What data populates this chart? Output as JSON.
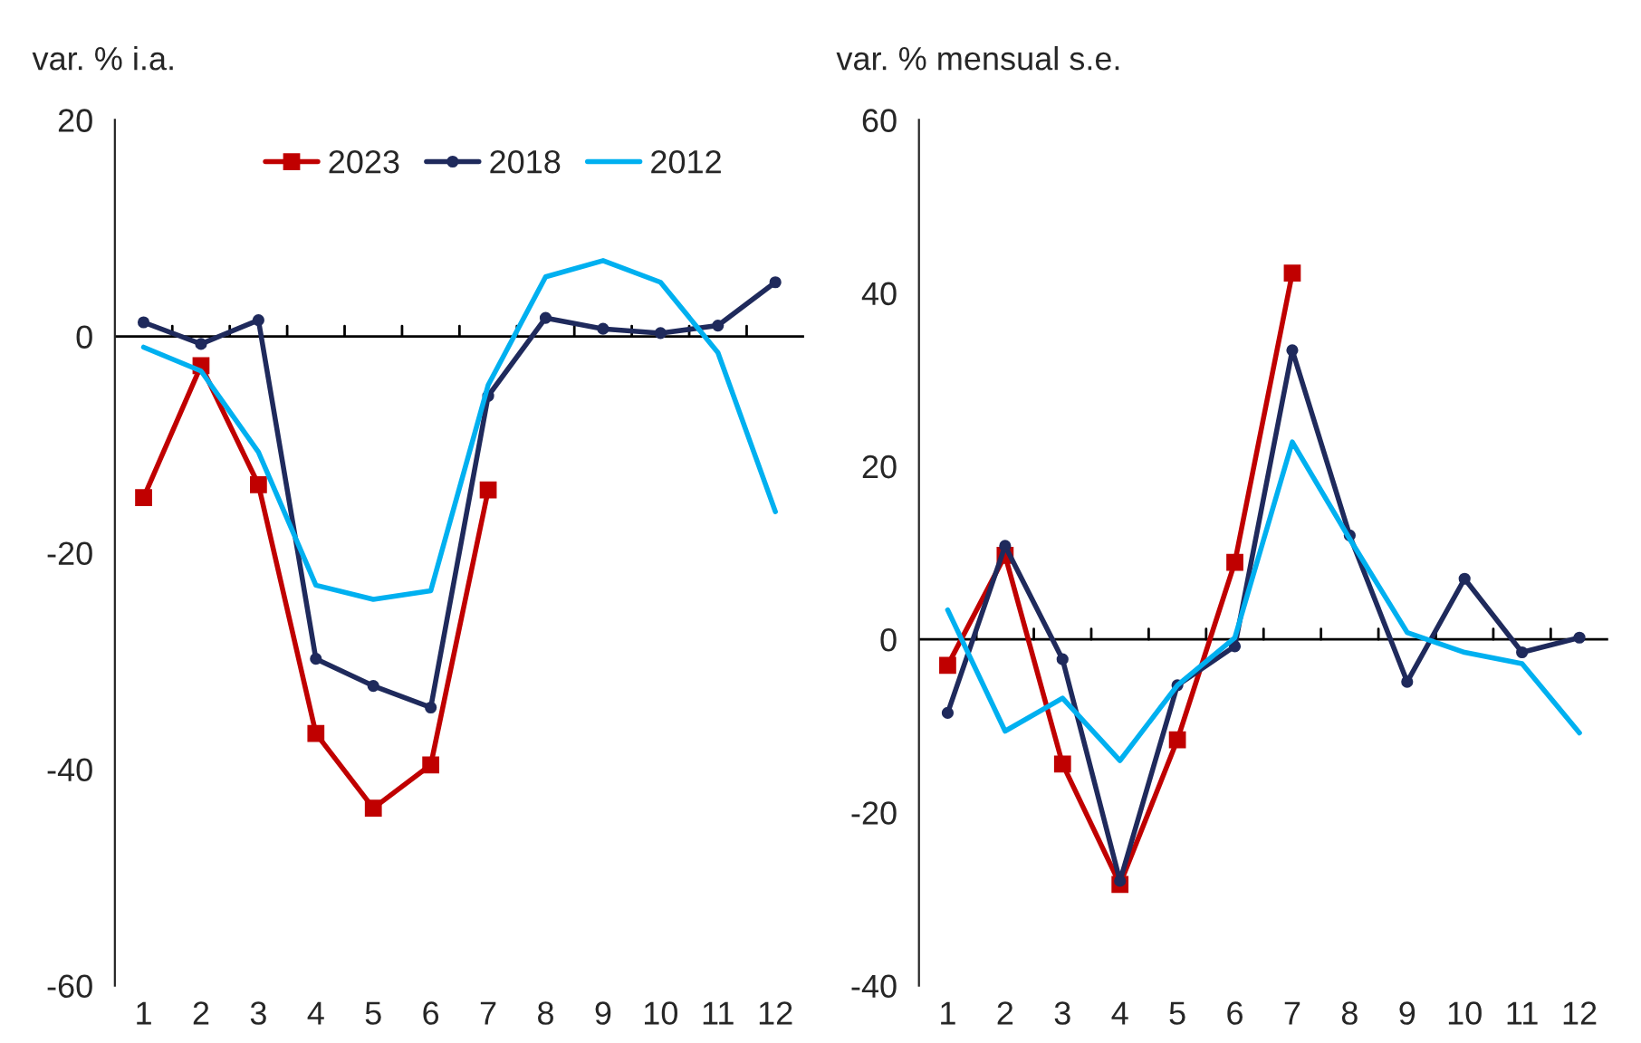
{
  "chart_data": [
    {
      "type": "line",
      "ylabel": "var. % i.a.",
      "categories": [
        "1",
        "2",
        "3",
        "4",
        "5",
        "6",
        "7",
        "8",
        "9",
        "10",
        "11",
        "12"
      ],
      "ylim": [
        -60,
        20
      ],
      "yticks": [
        -60,
        -40,
        -20,
        0,
        20
      ],
      "legend": "top",
      "grid": false,
      "ref_lines": [
        {
          "axis": "y",
          "value": 0
        }
      ],
      "series": [
        {
          "name": "2023",
          "color": "#c00000",
          "marker": "square",
          "values": [
            -14.9,
            -2.7,
            -13.7,
            -36.7,
            -43.6,
            -39.6,
            -14.2,
            null,
            null,
            null,
            null,
            null
          ]
        },
        {
          "name": "2018",
          "color": "#1f2a5c",
          "marker": "circle",
          "values": [
            1.3,
            -0.7,
            1.5,
            -29.8,
            -32.3,
            -34.3,
            -5.5,
            1.7,
            0.7,
            0.3,
            1.0,
            5.0
          ]
        },
        {
          "name": "2012",
          "color": "#00b0f0",
          "marker": "none",
          "values": [
            -1.0,
            -3.2,
            -10.7,
            -23.0,
            -24.3,
            -23.5,
            -4.5,
            5.5,
            7.0,
            5.0,
            -1.5,
            -16.2
          ]
        }
      ]
    },
    {
      "type": "line",
      "ylabel": "var. % mensual s.e.",
      "categories": [
        "1",
        "2",
        "3",
        "4",
        "5",
        "6",
        "7",
        "8",
        "9",
        "10",
        "11",
        "12"
      ],
      "ylim": [
        -40,
        60
      ],
      "yticks": [
        -40,
        -20,
        0,
        20,
        40,
        60
      ],
      "grid": false,
      "ref_lines": [
        {
          "axis": "y",
          "value": 0
        }
      ],
      "series": [
        {
          "color": "#c00000",
          "marker": "square",
          "values": [
            -3.0,
            9.7,
            -14.4,
            -28.3,
            -11.6,
            8.9,
            42.3,
            null,
            null,
            null,
            null,
            null
          ]
        },
        {
          "color": "#1f2a5c",
          "marker": "circle",
          "values": [
            -8.5,
            10.8,
            -2.3,
            -27.9,
            -5.3,
            -0.8,
            33.4,
            12.0,
            -4.9,
            7.0,
            -1.5,
            0.2
          ]
        },
        {
          "color": "#00b0f0",
          "marker": "none",
          "values": [
            3.4,
            -10.6,
            -6.8,
            -14.0,
            -5.3,
            0.2,
            22.8,
            11.6,
            0.8,
            -1.5,
            -2.8,
            -10.8
          ]
        }
      ]
    }
  ]
}
